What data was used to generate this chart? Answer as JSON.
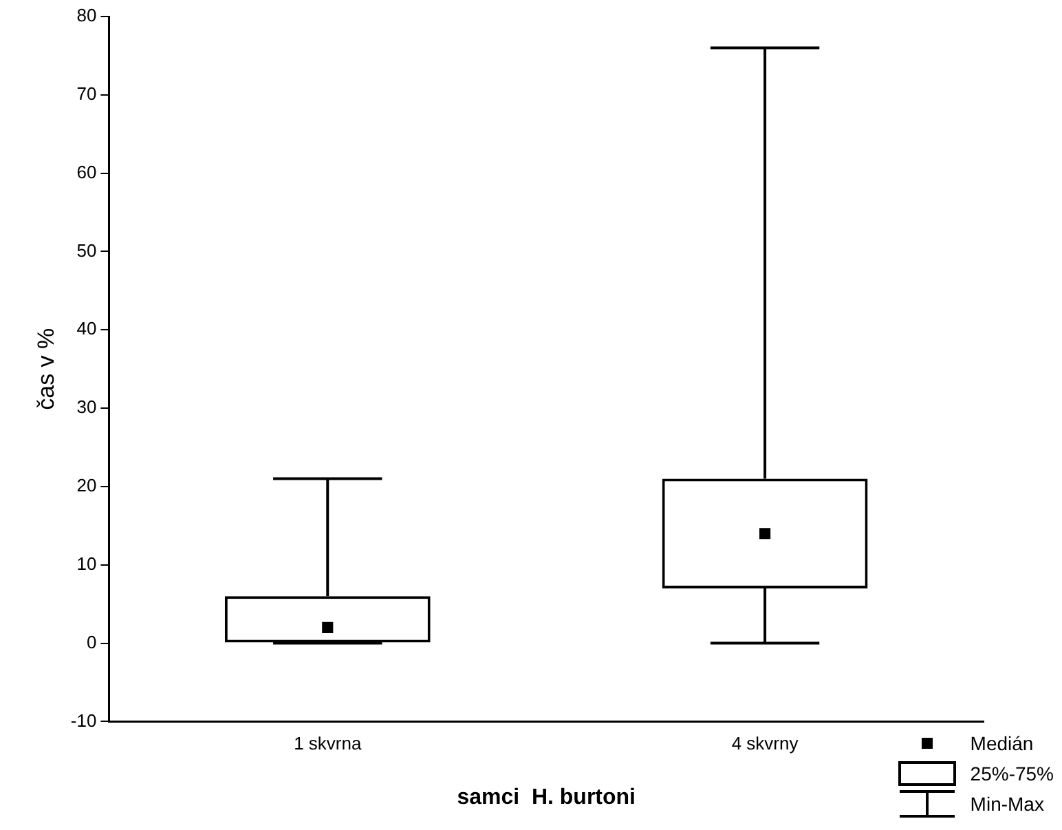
{
  "chart_data": {
    "type": "box",
    "categories": [
      "1 skvrna",
      "4 skvrny"
    ],
    "boxes": [
      {
        "low": 0,
        "q1": 0,
        "median": 2,
        "q3": 6,
        "high": 21
      },
      {
        "low": 0,
        "q1": 7,
        "median": 14,
        "q3": 21,
        "high": 76
      }
    ],
    "color": "#000000",
    "xlabel": "samci  H. burtoni",
    "ylabel": "čas v %",
    "ylim": [
      -10,
      80
    ],
    "yticks": [
      -10,
      0,
      10,
      20,
      30,
      40,
      50,
      60,
      70,
      80
    ],
    "grid": false,
    "marker": "square",
    "annotations": [
      "Medián",
      "25%-75%",
      "Min-Max"
    ]
  }
}
